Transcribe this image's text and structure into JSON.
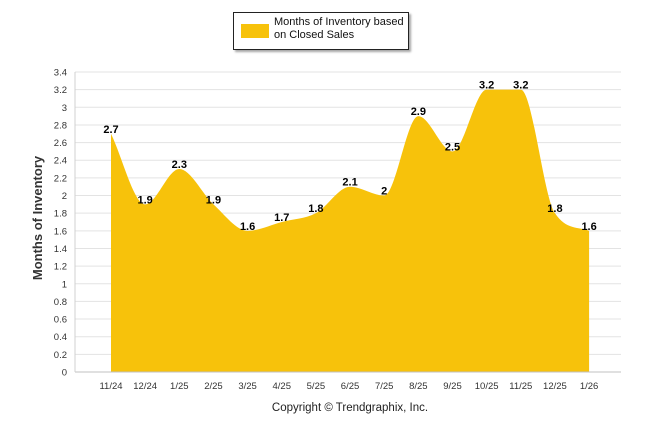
{
  "legend": {
    "label": "Months of Inventory based on Closed Sales",
    "color": "#F7C20B"
  },
  "footer": {
    "copyright": "Copyright © Trendgraphix, Inc."
  },
  "chart_data": {
    "type": "area",
    "title": "",
    "xlabel": "",
    "ylabel": "Months of Inventory",
    "ylim": [
      0,
      3.4
    ],
    "ytick_step": 0.2,
    "grid": true,
    "legend_position": "top-center",
    "series": [
      {
        "name": "Months of Inventory based on Closed Sales",
        "color": "#F7C20B",
        "values": [
          2.7,
          1.9,
          2.3,
          1.9,
          1.6,
          1.7,
          1.8,
          2.1,
          2,
          2.9,
          2.5,
          3.2,
          3.2,
          1.8,
          1.6
        ]
      }
    ],
    "categories": [
      "11/24",
      "12/24",
      "1/25",
      "2/25",
      "3/25",
      "4/25",
      "5/25",
      "6/25",
      "7/25",
      "8/25",
      "9/25",
      "10/25",
      "11/25",
      "12/25",
      "1/26"
    ]
  }
}
